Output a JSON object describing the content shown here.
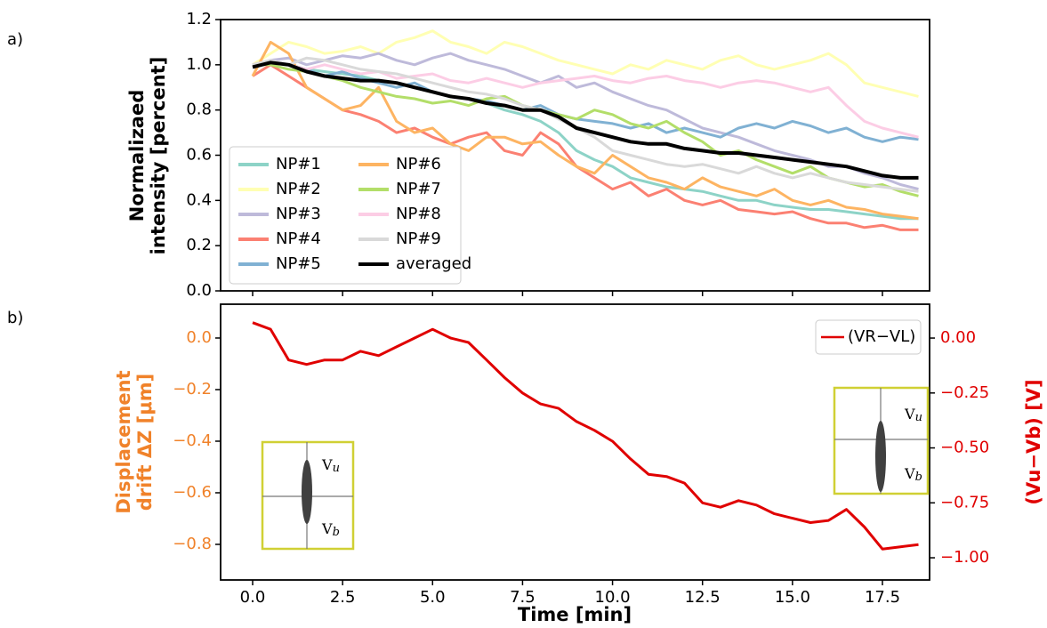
{
  "chart_data": [
    {
      "type": "line",
      "panel_label": "a)",
      "ylabel": [
        "Normalizaed",
        "intensity [percent]"
      ],
      "x": [
        0,
        0.5,
        1,
        1.5,
        2,
        2.5,
        3,
        3.5,
        4,
        4.5,
        5,
        5.5,
        6,
        6.5,
        7,
        7.5,
        8,
        8.5,
        9,
        9.5,
        10,
        10.5,
        11,
        11.5,
        12,
        12.5,
        13,
        13.5,
        14,
        14.5,
        15,
        15.5,
        16,
        16.5,
        17,
        17.5,
        18,
        18.5
      ],
      "xlim": [
        -0.89,
        18.81
      ],
      "xticks": [
        0,
        2.5,
        5,
        7.5,
        10,
        12.5,
        15,
        17.5
      ],
      "xticklabels": false,
      "ylim": [
        0,
        1.2
      ],
      "yticks": [
        {
          "value": 0,
          "label": "0.0"
        },
        0.2,
        0.4,
        0.6,
        0.8,
        {
          "value": 1,
          "label": "1.0"
        },
        1.2
      ],
      "legend": "lower left",
      "series": [
        {
          "name": "NP#1",
          "color": "#8dd3c7",
          "values": [
            1.0,
            1.02,
            1.0,
            0.98,
            0.97,
            0.96,
            0.95,
            0.93,
            0.92,
            0.9,
            0.88,
            0.86,
            0.85,
            0.83,
            0.8,
            0.78,
            0.75,
            0.7,
            0.62,
            0.58,
            0.55,
            0.5,
            0.48,
            0.46,
            0.45,
            0.44,
            0.42,
            0.4,
            0.4,
            0.38,
            0.37,
            0.36,
            0.36,
            0.35,
            0.34,
            0.33,
            0.32,
            0.32
          ]
        },
        {
          "name": "NP#2",
          "color": "#ffffb3",
          "values": [
            1.0,
            1.05,
            1.1,
            1.08,
            1.05,
            1.06,
            1.08,
            1.05,
            1.1,
            1.12,
            1.15,
            1.1,
            1.08,
            1.05,
            1.1,
            1.08,
            1.05,
            1.02,
            1.0,
            0.98,
            0.96,
            1.0,
            0.98,
            1.02,
            1.0,
            0.98,
            1.02,
            1.04,
            1.0,
            0.98,
            1.0,
            1.02,
            1.05,
            1.0,
            0.92,
            0.9,
            0.88,
            0.86
          ]
        },
        {
          "name": "NP#3",
          "color": "#bebada",
          "values": [
            1.0,
            1.02,
            1.03,
            1.0,
            1.02,
            1.04,
            1.03,
            1.05,
            1.02,
            1.0,
            1.03,
            1.05,
            1.02,
            1.0,
            0.98,
            0.95,
            0.92,
            0.95,
            0.9,
            0.92,
            0.88,
            0.85,
            0.82,
            0.8,
            0.76,
            0.72,
            0.7,
            0.68,
            0.65,
            0.62,
            0.6,
            0.58,
            0.55,
            0.55,
            0.52,
            0.5,
            0.47,
            0.45
          ]
        },
        {
          "name": "NP#4",
          "color": "#fb8072",
          "values": [
            0.95,
            1.0,
            0.95,
            0.9,
            0.85,
            0.8,
            0.78,
            0.75,
            0.7,
            0.72,
            0.68,
            0.65,
            0.68,
            0.7,
            0.62,
            0.6,
            0.7,
            0.65,
            0.55,
            0.5,
            0.45,
            0.48,
            0.42,
            0.45,
            0.4,
            0.38,
            0.4,
            0.36,
            0.35,
            0.34,
            0.35,
            0.32,
            0.3,
            0.3,
            0.28,
            0.29,
            0.27,
            0.27
          ]
        },
        {
          "name": "NP#5",
          "color": "#80b1d3",
          "values": [
            1.0,
            1.02,
            1.0,
            0.98,
            0.95,
            0.97,
            0.94,
            0.92,
            0.9,
            0.92,
            0.88,
            0.86,
            0.85,
            0.84,
            0.82,
            0.8,
            0.82,
            0.78,
            0.76,
            0.75,
            0.74,
            0.72,
            0.74,
            0.7,
            0.72,
            0.7,
            0.68,
            0.72,
            0.74,
            0.72,
            0.75,
            0.73,
            0.7,
            0.72,
            0.68,
            0.66,
            0.68,
            0.67
          ]
        },
        {
          "name": "NP#6",
          "color": "#fdb462",
          "values": [
            0.95,
            1.1,
            1.05,
            0.9,
            0.85,
            0.8,
            0.82,
            0.9,
            0.75,
            0.7,
            0.72,
            0.65,
            0.62,
            0.68,
            0.68,
            0.65,
            0.66,
            0.6,
            0.55,
            0.52,
            0.6,
            0.55,
            0.5,
            0.48,
            0.45,
            0.5,
            0.46,
            0.44,
            0.42,
            0.45,
            0.4,
            0.38,
            0.4,
            0.37,
            0.36,
            0.34,
            0.33,
            0.32
          ]
        },
        {
          "name": "NP#7",
          "color": "#b3de69",
          "values": [
            1.0,
            1.0,
            0.98,
            0.97,
            0.95,
            0.93,
            0.9,
            0.88,
            0.86,
            0.85,
            0.83,
            0.84,
            0.82,
            0.85,
            0.86,
            0.82,
            0.8,
            0.78,
            0.76,
            0.8,
            0.78,
            0.74,
            0.72,
            0.75,
            0.7,
            0.66,
            0.6,
            0.62,
            0.58,
            0.55,
            0.52,
            0.55,
            0.5,
            0.48,
            0.46,
            0.47,
            0.44,
            0.42
          ]
        },
        {
          "name": "NP#8",
          "color": "#fccde5",
          "values": [
            1.0,
            1.02,
            1.0,
            0.98,
            1.0,
            0.98,
            0.96,
            0.97,
            0.94,
            0.95,
            0.96,
            0.93,
            0.92,
            0.94,
            0.92,
            0.9,
            0.92,
            0.93,
            0.94,
            0.95,
            0.93,
            0.92,
            0.94,
            0.95,
            0.93,
            0.92,
            0.9,
            0.92,
            0.93,
            0.92,
            0.9,
            0.88,
            0.9,
            0.82,
            0.75,
            0.72,
            0.7,
            0.68
          ]
        },
        {
          "name": "NP#9",
          "color": "#d9d9d9",
          "values": [
            1.0,
            1.02,
            1.0,
            1.03,
            1.02,
            1.0,
            0.98,
            0.97,
            0.96,
            0.94,
            0.92,
            0.9,
            0.88,
            0.87,
            0.85,
            0.82,
            0.8,
            0.76,
            0.72,
            0.68,
            0.62,
            0.6,
            0.58,
            0.56,
            0.55,
            0.56,
            0.54,
            0.52,
            0.55,
            0.52,
            0.5,
            0.52,
            0.5,
            0.48,
            0.47,
            0.46,
            0.45,
            0.44
          ]
        },
        {
          "name": "averaged",
          "color": "#000000",
          "values": [
            0.99,
            1.01,
            1.0,
            0.97,
            0.95,
            0.94,
            0.93,
            0.93,
            0.92,
            0.9,
            0.88,
            0.86,
            0.85,
            0.83,
            0.82,
            0.8,
            0.8,
            0.77,
            0.72,
            0.7,
            0.68,
            0.66,
            0.65,
            0.65,
            0.63,
            0.62,
            0.61,
            0.61,
            0.6,
            0.59,
            0.58,
            0.57,
            0.56,
            0.55,
            0.53,
            0.51,
            0.5,
            0.5
          ]
        }
      ]
    },
    {
      "type": "line",
      "panel_label": "b)",
      "xlabel": "Time [min]",
      "ylabel": [
        "Displacement",
        "drift ΔZ [μm]"
      ],
      "y2label": "(Vu−Vb) [V]",
      "x": [
        0,
        0.5,
        1,
        1.5,
        2,
        2.5,
        3,
        3.5,
        4,
        4.5,
        5,
        5.5,
        6,
        6.5,
        7,
        7.5,
        8,
        8.5,
        9,
        9.5,
        10,
        10.5,
        11,
        11.5,
        12,
        12.5,
        13,
        13.5,
        14,
        14.5,
        15,
        15.5,
        16,
        16.5,
        17,
        17.5,
        18,
        18.5
      ],
      "xlim": [
        -0.89,
        18.81
      ],
      "xticks": [
        {
          "value": 0,
          "label": "0.0"
        },
        2.5,
        {
          "value": 5,
          "label": "5.0"
        },
        7.5,
        {
          "value": 10,
          "label": "10.0"
        },
        12.5,
        {
          "value": 15,
          "label": "15.0"
        },
        17.5
      ],
      "ylim": [
        -0.938,
        0.131
      ],
      "yticks": [
        {
          "value": 0,
          "label": "0.0"
        },
        {
          "value": -0.2,
          "label": "−0.2"
        },
        {
          "value": -0.4,
          "label": "−0.4"
        },
        {
          "value": -0.6,
          "label": "−0.6"
        },
        {
          "value": -0.8,
          "label": "−0.8"
        }
      ],
      "y2lim": [
        -1.101,
        0.154
      ],
      "y2ticks": [
        {
          "value": 0,
          "label": "0.00"
        },
        {
          "value": -0.25,
          "label": "−0.25"
        },
        {
          "value": -0.5,
          "label": "−0.50"
        },
        {
          "value": -0.75,
          "label": "−0.75"
        },
        {
          "value": -1,
          "label": "−1.00"
        }
      ],
      "legend": "upper right",
      "annotations": [
        {
          "base": "V",
          "sub": "u"
        },
        {
          "base": "V",
          "sub": "b"
        }
      ],
      "series": [
        {
          "name": "(VR−VL)",
          "color": "#e00000",
          "axis": "y2",
          "values": [
            0.07,
            0.04,
            -0.1,
            -0.12,
            -0.1,
            -0.1,
            -0.06,
            -0.08,
            -0.04,
            0.0,
            0.04,
            0.0,
            -0.02,
            -0.1,
            -0.18,
            -0.25,
            -0.3,
            -0.32,
            -0.38,
            -0.42,
            -0.47,
            -0.55,
            -0.62,
            -0.63,
            -0.66,
            -0.75,
            -0.77,
            -0.74,
            -0.76,
            -0.8,
            -0.82,
            -0.84,
            -0.83,
            -0.78,
            -0.86,
            -0.96,
            -0.95,
            -0.94
          ]
        }
      ]
    }
  ]
}
